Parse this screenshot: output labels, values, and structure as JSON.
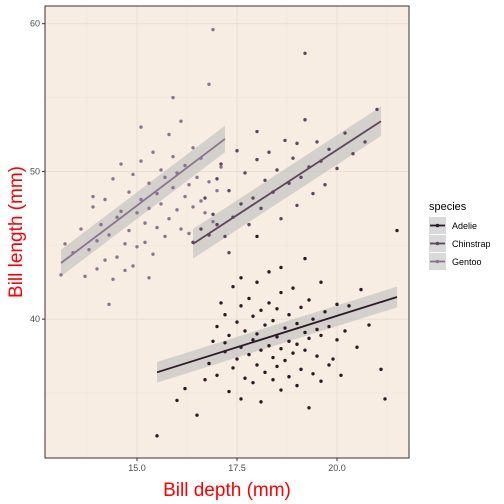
{
  "chart_data": {
    "type": "scatter",
    "title": "",
    "xlabel": "Bill depth (mm)",
    "ylabel": "Bill length (mm)",
    "xlim": [
      12.7,
      21.8
    ],
    "ylim": [
      30.6,
      61.2
    ],
    "x_ticks": [
      15.0,
      17.5,
      20.0
    ],
    "x_tick_labels": [
      "15.0",
      "17.5",
      "20.0"
    ],
    "y_ticks": [
      40,
      50,
      60
    ],
    "y_tick_labels": [
      "40",
      "50",
      "60"
    ],
    "grid": true,
    "background_color": "#f8ede3",
    "legend": {
      "title": "species",
      "position": "right"
    },
    "series": [
      {
        "name": "Adelie",
        "color": "#2c1a28",
        "trend": {
          "x0": 15.5,
          "y0": 36.4,
          "x1": 21.5,
          "y1": 41.5,
          "band": 0.7
        },
        "points": [
          [
            15.5,
            32.1
          ],
          [
            16.0,
            34.5
          ],
          [
            16.2,
            35.3
          ],
          [
            16.5,
            33.5
          ],
          [
            16.7,
            35.9
          ],
          [
            16.8,
            37.0
          ],
          [
            16.9,
            38.5
          ],
          [
            17.0,
            36.2
          ],
          [
            17.0,
            39.5
          ],
          [
            17.1,
            41.1
          ],
          [
            17.2,
            37.8
          ],
          [
            17.2,
            40.3
          ],
          [
            17.3,
            35.1
          ],
          [
            17.3,
            38.9
          ],
          [
            17.4,
            36.7
          ],
          [
            17.4,
            42.2
          ],
          [
            17.5,
            37.3
          ],
          [
            17.5,
            39.8
          ],
          [
            17.6,
            34.6
          ],
          [
            17.6,
            38.1
          ],
          [
            17.6,
            40.9
          ],
          [
            17.7,
            36.0
          ],
          [
            17.7,
            39.2
          ],
          [
            17.8,
            37.6
          ],
          [
            17.8,
            41.4
          ],
          [
            17.9,
            35.7
          ],
          [
            17.9,
            38.6
          ],
          [
            17.9,
            40.2
          ],
          [
            18.0,
            36.9
          ],
          [
            18.0,
            39.0
          ],
          [
            18.0,
            42.5
          ],
          [
            18.1,
            34.4
          ],
          [
            18.1,
            37.9
          ],
          [
            18.1,
            40.6
          ],
          [
            18.2,
            36.4
          ],
          [
            18.2,
            39.6
          ],
          [
            18.3,
            38.2
          ],
          [
            18.3,
            41.1
          ],
          [
            18.3,
            43.2
          ],
          [
            18.4,
            35.9
          ],
          [
            18.4,
            37.4
          ],
          [
            18.4,
            39.9
          ],
          [
            18.5,
            36.8
          ],
          [
            18.5,
            38.8
          ],
          [
            18.5,
            40.7
          ],
          [
            18.6,
            35.2
          ],
          [
            18.6,
            38.0
          ],
          [
            18.6,
            41.8
          ],
          [
            18.7,
            37.2
          ],
          [
            18.7,
            39.4
          ],
          [
            18.8,
            36.1
          ],
          [
            18.8,
            38.5
          ],
          [
            18.8,
            40.3
          ],
          [
            18.9,
            37.7
          ],
          [
            18.9,
            42.1
          ],
          [
            19.0,
            35.5
          ],
          [
            19.0,
            38.3
          ],
          [
            19.0,
            39.7
          ],
          [
            19.1,
            36.6
          ],
          [
            19.1,
            40.8
          ],
          [
            19.2,
            37.9
          ],
          [
            19.2,
            39.1
          ],
          [
            19.3,
            34.0
          ],
          [
            19.3,
            38.7
          ],
          [
            19.3,
            41.3
          ],
          [
            19.4,
            36.3
          ],
          [
            19.4,
            40.0
          ],
          [
            19.5,
            37.5
          ],
          [
            19.5,
            39.3
          ],
          [
            19.6,
            35.8
          ],
          [
            19.6,
            38.9
          ],
          [
            19.7,
            40.5
          ],
          [
            19.8,
            36.9
          ],
          [
            19.8,
            39.5
          ],
          [
            19.9,
            37.3
          ],
          [
            20.0,
            38.6
          ],
          [
            20.0,
            41.0
          ],
          [
            20.1,
            36.2
          ],
          [
            20.2,
            39.2
          ],
          [
            20.3,
            40.9
          ],
          [
            20.5,
            38.1
          ],
          [
            20.6,
            42.0
          ],
          [
            20.8,
            39.6
          ],
          [
            21.1,
            36.6
          ],
          [
            21.2,
            34.6
          ],
          [
            21.5,
            46.0
          ],
          [
            17.2,
            38.4
          ],
          [
            17.6,
            42.8
          ],
          [
            18.0,
            45.6
          ],
          [
            18.6,
            43.5
          ],
          [
            19.2,
            44.1
          ],
          [
            19.6,
            42.5
          ]
        ]
      },
      {
        "name": "Chinstrap",
        "color": "#5e4660",
        "trend": {
          "x0": 16.4,
          "y0": 45.1,
          "x1": 21.1,
          "y1": 53.4,
          "band": 1.0
        },
        "points": [
          [
            16.4,
            45.2
          ],
          [
            16.6,
            46.1
          ],
          [
            16.7,
            48.2
          ],
          [
            16.8,
            45.7
          ],
          [
            16.9,
            47.1
          ],
          [
            17.0,
            49.5
          ],
          [
            17.0,
            46.4
          ],
          [
            17.1,
            50.5
          ],
          [
            17.2,
            45.6
          ],
          [
            17.3,
            48.7
          ],
          [
            17.4,
            46.9
          ],
          [
            17.5,
            51.4
          ],
          [
            17.6,
            47.8
          ],
          [
            17.7,
            49.9
          ],
          [
            17.8,
            46.4
          ],
          [
            17.9,
            48.2
          ],
          [
            18.0,
            50.8
          ],
          [
            18.0,
            52.7
          ],
          [
            18.1,
            47.5
          ],
          [
            18.2,
            49.4
          ],
          [
            18.3,
            51.3
          ],
          [
            18.4,
            48.6
          ],
          [
            18.5,
            50.1
          ],
          [
            18.6,
            46.8
          ],
          [
            18.7,
            52.1
          ],
          [
            18.8,
            49.2
          ],
          [
            18.9,
            50.9
          ],
          [
            19.0,
            47.7
          ],
          [
            19.0,
            51.9
          ],
          [
            19.1,
            49.6
          ],
          [
            19.2,
            53.5
          ],
          [
            19.3,
            50.3
          ],
          [
            19.4,
            48.5
          ],
          [
            19.5,
            52.0
          ],
          [
            19.6,
            50.7
          ],
          [
            19.7,
            49.1
          ],
          [
            19.8,
            51.5
          ],
          [
            20.0,
            50.2
          ],
          [
            20.2,
            52.6
          ],
          [
            20.4,
            51.2
          ],
          [
            20.7,
            52.0
          ],
          [
            21.0,
            54.2
          ],
          [
            19.2,
            58.0
          ],
          [
            17.3,
            44.5
          ]
        ]
      },
      {
        "name": "Gentoo",
        "color": "#8a7490",
        "trend": {
          "x0": 13.1,
          "y0": 43.8,
          "x1": 17.2,
          "y1": 52.2,
          "band": 0.9
        },
        "points": [
          [
            13.1,
            43.0
          ],
          [
            13.2,
            45.1
          ],
          [
            13.4,
            44.5
          ],
          [
            13.6,
            46.1
          ],
          [
            13.7,
            42.9
          ],
          [
            13.8,
            44.7
          ],
          [
            13.9,
            47.6
          ],
          [
            14.0,
            45.3
          ],
          [
            14.0,
            43.4
          ],
          [
            14.1,
            46.4
          ],
          [
            14.2,
            44.0
          ],
          [
            14.2,
            48.1
          ],
          [
            14.3,
            45.7
          ],
          [
            14.4,
            42.7
          ],
          [
            14.4,
            49.5
          ],
          [
            14.5,
            46.9
          ],
          [
            14.5,
            44.2
          ],
          [
            14.6,
            50.5
          ],
          [
            14.6,
            47.3
          ],
          [
            14.7,
            45.1
          ],
          [
            14.8,
            48.6
          ],
          [
            14.8,
            46.0
          ],
          [
            14.9,
            43.6
          ],
          [
            14.9,
            49.8
          ],
          [
            15.0,
            47.2
          ],
          [
            15.0,
            44.9
          ],
          [
            15.1,
            48.1
          ],
          [
            15.1,
            50.7
          ],
          [
            15.2,
            46.5
          ],
          [
            15.2,
            45.2
          ],
          [
            15.3,
            49.2
          ],
          [
            15.3,
            47.5
          ],
          [
            15.4,
            51.3
          ],
          [
            15.4,
            44.4
          ],
          [
            15.5,
            48.5
          ],
          [
            15.5,
            46.2
          ],
          [
            15.6,
            50.1
          ],
          [
            15.6,
            47.8
          ],
          [
            15.7,
            45.6
          ],
          [
            15.7,
            49.6
          ],
          [
            15.8,
            52.5
          ],
          [
            15.8,
            46.8
          ],
          [
            15.9,
            48.9
          ],
          [
            15.9,
            51.0
          ],
          [
            16.0,
            47.4
          ],
          [
            16.0,
            49.9
          ],
          [
            16.1,
            53.4
          ],
          [
            16.1,
            46.1
          ],
          [
            16.2,
            48.3
          ],
          [
            16.2,
            50.4
          ],
          [
            16.3,
            49.1
          ],
          [
            16.3,
            45.8
          ],
          [
            16.4,
            51.6
          ],
          [
            16.4,
            47.6
          ],
          [
            16.5,
            49.6
          ],
          [
            16.6,
            48.0
          ],
          [
            16.6,
            50.9
          ],
          [
            16.7,
            47.2
          ],
          [
            16.8,
            49.3
          ],
          [
            16.9,
            46.6
          ],
          [
            17.0,
            48.7
          ],
          [
            17.1,
            50.3
          ],
          [
            15.3,
            42.8
          ],
          [
            14.3,
            41.0
          ],
          [
            15.9,
            55.0
          ],
          [
            16.8,
            55.9
          ],
          [
            16.9,
            59.6
          ],
          [
            13.9,
            48.3
          ],
          [
            15.1,
            53.0
          ],
          [
            14.7,
            43.3
          ]
        ]
      }
    ]
  }
}
